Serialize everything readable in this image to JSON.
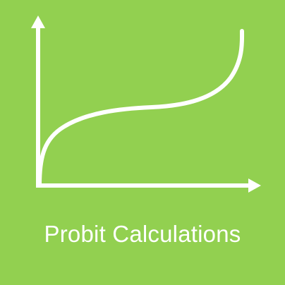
{
  "app": {
    "title": "Probit Calculations"
  },
  "theme": {
    "background": "#92D050",
    "foreground": "#FFFFFF"
  },
  "icon": {
    "name": "probit-curve-icon",
    "description": "S-shaped curve on x/y axes"
  }
}
